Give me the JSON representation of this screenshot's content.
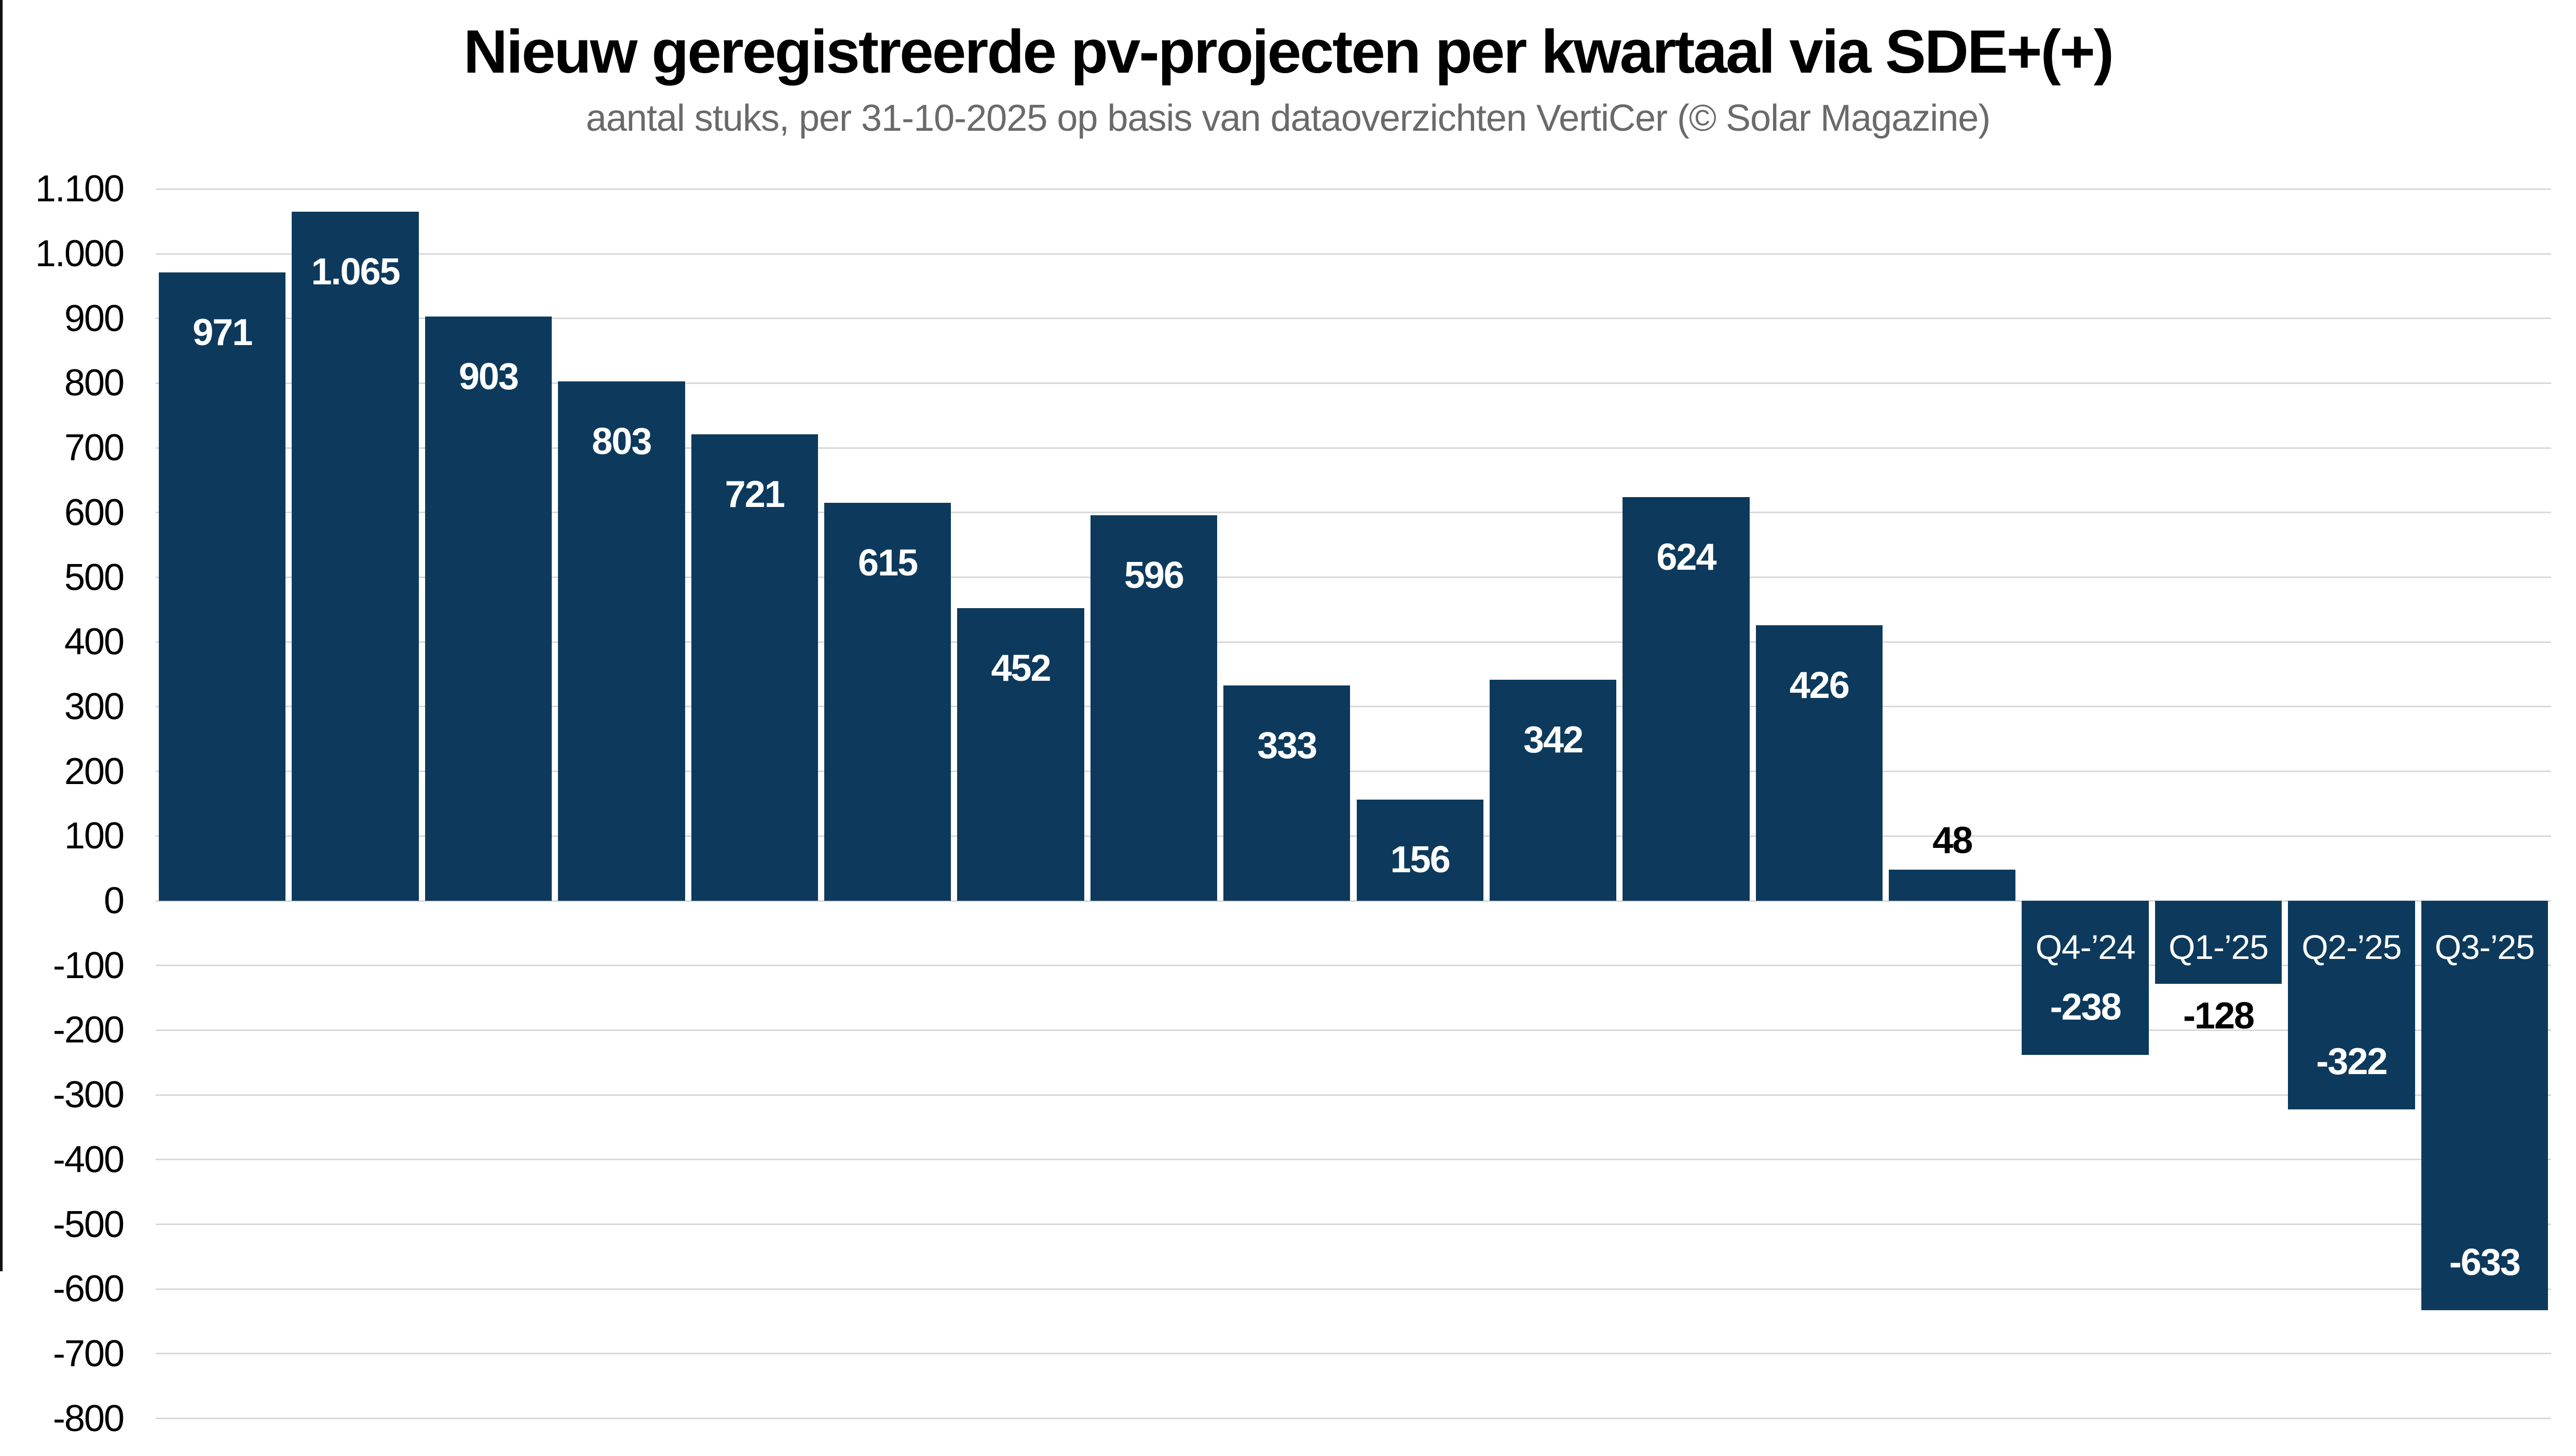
{
  "chart_data": {
    "type": "bar",
    "title": "Nieuw geregistreerde pv-projecten per kwartaal via SDE+(+)",
    "subtitle": "aantal stuks, per 31-10-2025 op basis van dataoverzichten VertiCer (© Solar Magazine)",
    "ylabel": "",
    "xlabel": "",
    "ylim": [
      -800,
      1100
    ],
    "ytick_step": 100,
    "grid": "horizontal",
    "legend": "none",
    "number_format": "thousands separated by period, e.g. 1.065",
    "colors": {
      "bar": "#0d3a5c",
      "grid": "#d9d9d9",
      "title": "#000000",
      "subtitle": "#6a6a6a",
      "label_inside": "#ffffff",
      "label_outside": "#000000"
    },
    "yticks": [
      {
        "value": 1100,
        "label": "1.100"
      },
      {
        "value": 1000,
        "label": "1.000"
      },
      {
        "value": 900,
        "label": "900"
      },
      {
        "value": 800,
        "label": "800"
      },
      {
        "value": 700,
        "label": "700"
      },
      {
        "value": 600,
        "label": "600"
      },
      {
        "value": 500,
        "label": "500"
      },
      {
        "value": 400,
        "label": "400"
      },
      {
        "value": 300,
        "label": "300"
      },
      {
        "value": 200,
        "label": "200"
      },
      {
        "value": 100,
        "label": "100"
      },
      {
        "value": 0,
        "label": "0"
      },
      {
        "value": -100,
        "label": "-100"
      },
      {
        "value": -200,
        "label": "-200"
      },
      {
        "value": -300,
        "label": "-300"
      },
      {
        "value": -400,
        "label": "-400"
      },
      {
        "value": -500,
        "label": "-500"
      },
      {
        "value": -600,
        "label": "-600"
      },
      {
        "value": -700,
        "label": "-700"
      },
      {
        "value": -800,
        "label": "-800"
      }
    ],
    "bars": [
      {
        "value": 971,
        "label": "971",
        "category": ""
      },
      {
        "value": 1065,
        "label": "1.065",
        "category": ""
      },
      {
        "value": 903,
        "label": "903",
        "category": ""
      },
      {
        "value": 803,
        "label": "803",
        "category": ""
      },
      {
        "value": 721,
        "label": "721",
        "category": ""
      },
      {
        "value": 615,
        "label": "615",
        "category": ""
      },
      {
        "value": 452,
        "label": "452",
        "category": ""
      },
      {
        "value": 596,
        "label": "596",
        "category": ""
      },
      {
        "value": 333,
        "label": "333",
        "category": ""
      },
      {
        "value": 156,
        "label": "156",
        "category": ""
      },
      {
        "value": 342,
        "label": "342",
        "category": ""
      },
      {
        "value": 624,
        "label": "624",
        "category": ""
      },
      {
        "value": 426,
        "label": "426",
        "category": ""
      },
      {
        "value": 48,
        "label": "48",
        "category": ""
      },
      {
        "value": -238,
        "label": "-238",
        "category": "Q4-’24"
      },
      {
        "value": -128,
        "label": "-128",
        "category": "Q1-’25"
      },
      {
        "value": -322,
        "label": "-322",
        "category": "Q2-’25"
      },
      {
        "value": -633,
        "label": "-633",
        "category": "Q3-’25"
      }
    ]
  }
}
